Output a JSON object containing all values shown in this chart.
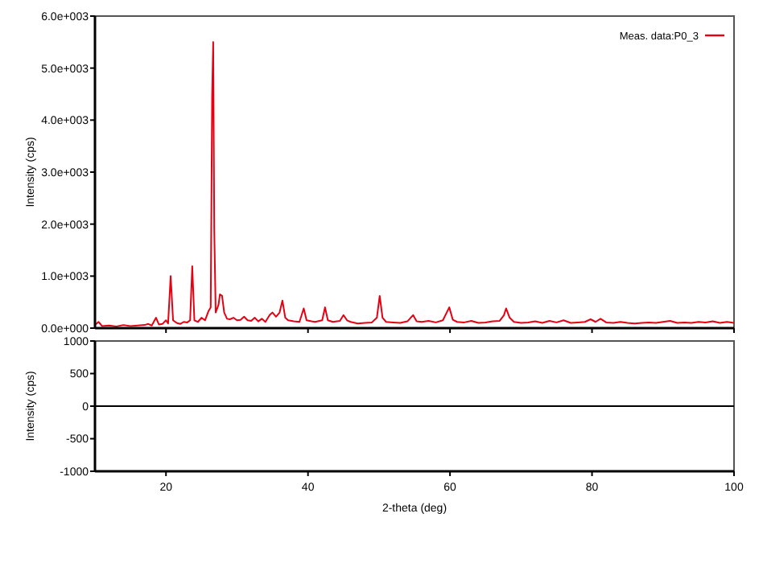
{
  "chart_data": [
    {
      "type": "line",
      "ylabel": "Intensity (cps)",
      "xlim": [
        10,
        100
      ],
      "ylim": [
        0,
        6000
      ],
      "yticks": [
        {
          "value": 0,
          "label": "0.0e+000"
        },
        {
          "value": 1000,
          "label": "1.0e+003"
        },
        {
          "value": 2000,
          "label": "2.0e+003"
        },
        {
          "value": 3000,
          "label": "3.0e+003"
        },
        {
          "value": 4000,
          "label": "4.0e+003"
        },
        {
          "value": 5000,
          "label": "5.0e+003"
        },
        {
          "value": 6000,
          "label": "6.0e+003"
        }
      ],
      "xticks": [
        20,
        40,
        60,
        80,
        100
      ],
      "tick_labels": "y",
      "legend": "top right",
      "series": [
        {
          "name": "Meas. data:P0_3",
          "color": "#e60012",
          "x": [
            10,
            10.5,
            11,
            12,
            13,
            14,
            15,
            16,
            17,
            17.5,
            18,
            18.6,
            19,
            19.5,
            20,
            20.3,
            20.66,
            21,
            21.5,
            22,
            22.5,
            23,
            23.4,
            23.7,
            24,
            24.5,
            25,
            25.5,
            26,
            26.3,
            26.5,
            26.65,
            26.8,
            27,
            27.4,
            27.6,
            27.9,
            28.2,
            28.6,
            29,
            29.5,
            30,
            30.5,
            31,
            31.5,
            32,
            32.5,
            33,
            33.5,
            34,
            34.6,
            35,
            35.5,
            36,
            36.4,
            36.8,
            37.2,
            38,
            38.8,
            39.4,
            39.8,
            40.5,
            41,
            42,
            42.4,
            42.8,
            43.5,
            44.5,
            45,
            45.5,
            46,
            47,
            48,
            49,
            49.7,
            50.1,
            50.5,
            51,
            52,
            53,
            54,
            54.8,
            55.3,
            56,
            57,
            58,
            59,
            59.9,
            60.4,
            61,
            62,
            63,
            64,
            65,
            66,
            67,
            67.6,
            67.9,
            68.4,
            69,
            70,
            71,
            72,
            73,
            74,
            75,
            76,
            77,
            78,
            79,
            79.8,
            80.5,
            81.2,
            82,
            83,
            84,
            85,
            86,
            87,
            88,
            89,
            90,
            91,
            92,
            93,
            94,
            95,
            96,
            97,
            98,
            99,
            100
          ],
          "values": [
            60,
            120,
            40,
            50,
            30,
            60,
            40,
            50,
            60,
            80,
            50,
            200,
            70,
            80,
            150,
            90,
            1000,
            150,
            100,
            80,
            120,
            110,
            150,
            1190,
            150,
            120,
            200,
            150,
            330,
            400,
            4450,
            5500,
            1900,
            300,
            450,
            650,
            620,
            300,
            180,
            170,
            200,
            150,
            160,
            220,
            150,
            140,
            200,
            130,
            180,
            120,
            250,
            300,
            220,
            300,
            530,
            200,
            150,
            130,
            120,
            380,
            150,
            130,
            120,
            150,
            400,
            150,
            120,
            140,
            250,
            150,
            120,
            90,
            100,
            110,
            200,
            620,
            200,
            120,
            110,
            100,
            130,
            250,
            130,
            120,
            140,
            110,
            150,
            400,
            160,
            120,
            110,
            140,
            100,
            110,
            130,
            140,
            250,
            380,
            200,
            120,
            100,
            110,
            130,
            100,
            140,
            110,
            150,
            100,
            110,
            120,
            170,
            120,
            180,
            110,
            100,
            120,
            100,
            90,
            100,
            110,
            100,
            120,
            140,
            100,
            110,
            100,
            120,
            110,
            130,
            100,
            120,
            100
          ]
        }
      ]
    },
    {
      "type": "line",
      "xlabel": "2-theta (deg)",
      "ylabel": "Intensity (cps)",
      "xlim": [
        10,
        100
      ],
      "ylim": [
        -1000,
        1000
      ],
      "xticks": [
        20,
        40,
        60,
        80,
        100
      ],
      "yticks": [
        1000,
        500,
        0,
        -500,
        -1000
      ],
      "series": [
        {
          "color": "#000000",
          "x": [
            10,
            100
          ],
          "values": [
            0,
            0
          ]
        }
      ]
    }
  ]
}
